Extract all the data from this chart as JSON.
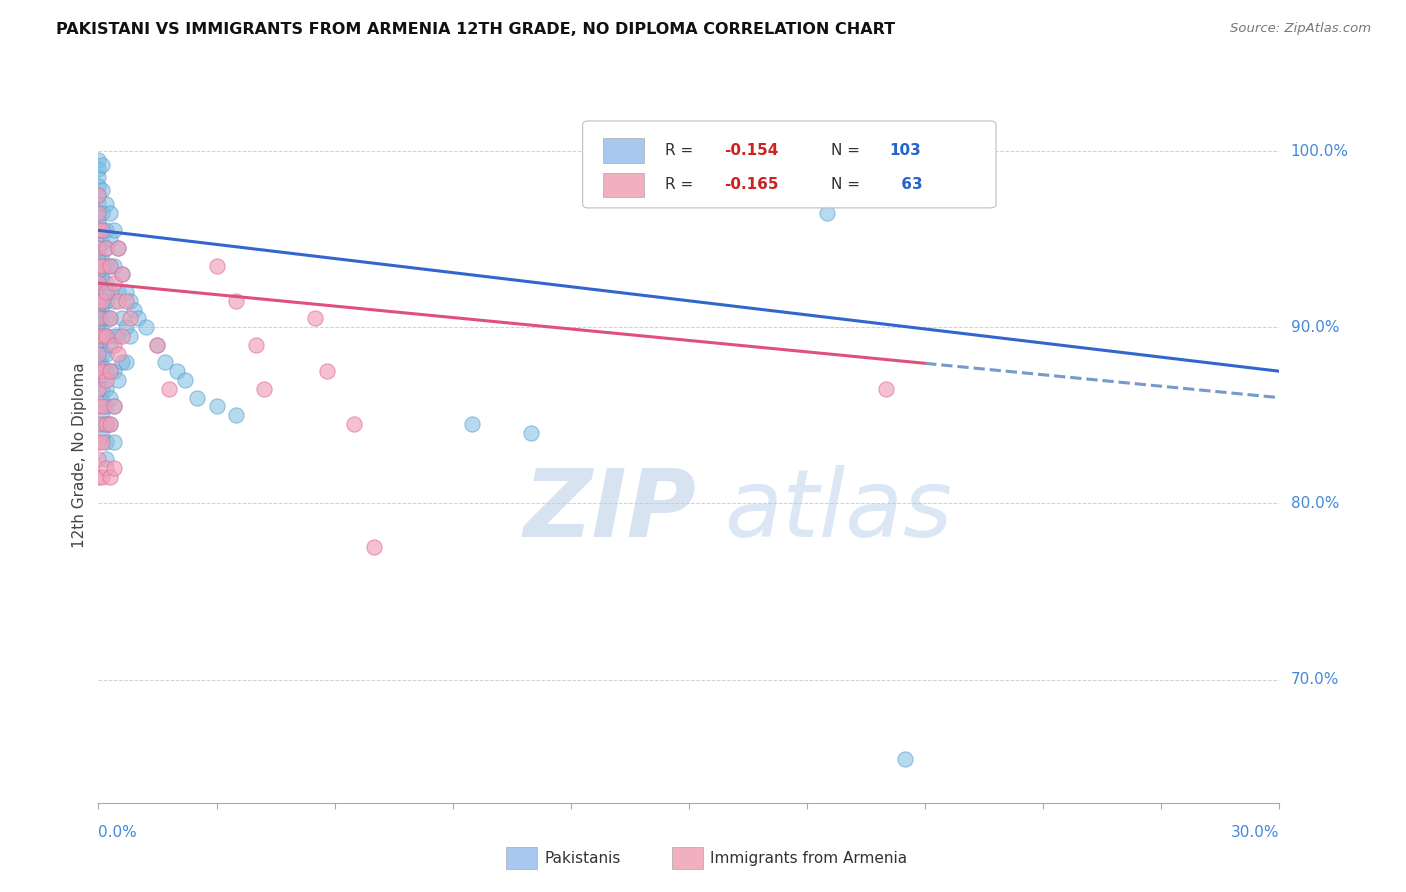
{
  "title": "PAKISTANI VS IMMIGRANTS FROM ARMENIA 12TH GRADE, NO DIPLOMA CORRELATION CHART",
  "source": "Source: ZipAtlas.com",
  "ylabel": "12th Grade, No Diploma",
  "watermark_zip": "ZIP",
  "watermark_atlas": "atlas",
  "xlim": [
    0.0,
    30.0
  ],
  "ylim": [
    63.0,
    102.5
  ],
  "pakistani_color": "#7bbde0",
  "pakistani_edge": "#5599cc",
  "armenia_color": "#f0a0b8",
  "armenia_edge": "#e070a0",
  "pakistani_line_color": "#3366cc",
  "armenia_line_color": "#e0507a",
  "dashed_line_color": "#7799cc",
  "legend_box_color": "#a8c8f0",
  "legend_box_color2": "#f0b0c0",
  "grid_color": "#cccccc",
  "background_color": "#ffffff",
  "pakistani_scatter": [
    [
      0.0,
      99.5
    ],
    [
      0.0,
      99.0
    ],
    [
      0.0,
      98.5
    ],
    [
      0.0,
      98.0
    ],
    [
      0.0,
      97.5
    ],
    [
      0.0,
      97.0
    ],
    [
      0.0,
      96.5
    ],
    [
      0.0,
      96.0
    ],
    [
      0.0,
      95.5
    ],
    [
      0.0,
      95.0
    ],
    [
      0.0,
      94.5
    ],
    [
      0.0,
      94.0
    ],
    [
      0.0,
      93.8
    ],
    [
      0.0,
      93.2
    ],
    [
      0.0,
      92.8
    ],
    [
      0.0,
      92.5
    ],
    [
      0.0,
      92.2
    ],
    [
      0.0,
      91.8
    ],
    [
      0.0,
      91.5
    ],
    [
      0.0,
      91.2
    ],
    [
      0.0,
      90.8
    ],
    [
      0.0,
      90.5
    ],
    [
      0.0,
      90.2
    ],
    [
      0.0,
      89.8
    ],
    [
      0.0,
      89.5
    ],
    [
      0.0,
      89.0
    ],
    [
      0.0,
      88.5
    ],
    [
      0.0,
      88.0
    ],
    [
      0.0,
      87.5
    ],
    [
      0.0,
      87.0
    ],
    [
      0.1,
      99.2
    ],
    [
      0.1,
      97.8
    ],
    [
      0.1,
      96.5
    ],
    [
      0.1,
      95.5
    ],
    [
      0.1,
      94.8
    ],
    [
      0.1,
      93.8
    ],
    [
      0.1,
      92.8
    ],
    [
      0.1,
      92.0
    ],
    [
      0.1,
      91.2
    ],
    [
      0.1,
      90.5
    ],
    [
      0.1,
      89.8
    ],
    [
      0.1,
      89.2
    ],
    [
      0.1,
      88.5
    ],
    [
      0.1,
      87.8
    ],
    [
      0.1,
      87.2
    ],
    [
      0.1,
      86.5
    ],
    [
      0.1,
      85.8
    ],
    [
      0.1,
      85.2
    ],
    [
      0.1,
      84.5
    ],
    [
      0.1,
      83.8
    ],
    [
      0.2,
      97.0
    ],
    [
      0.2,
      95.5
    ],
    [
      0.2,
      94.5
    ],
    [
      0.2,
      93.5
    ],
    [
      0.2,
      92.5
    ],
    [
      0.2,
      91.5
    ],
    [
      0.2,
      90.5
    ],
    [
      0.2,
      89.5
    ],
    [
      0.2,
      88.5
    ],
    [
      0.2,
      87.5
    ],
    [
      0.2,
      86.5
    ],
    [
      0.2,
      85.5
    ],
    [
      0.2,
      84.5
    ],
    [
      0.2,
      83.5
    ],
    [
      0.2,
      82.5
    ],
    [
      0.3,
      96.5
    ],
    [
      0.3,
      95.0
    ],
    [
      0.3,
      93.5
    ],
    [
      0.3,
      92.0
    ],
    [
      0.3,
      90.5
    ],
    [
      0.3,
      89.0
    ],
    [
      0.3,
      87.5
    ],
    [
      0.3,
      86.0
    ],
    [
      0.3,
      84.5
    ],
    [
      0.4,
      95.5
    ],
    [
      0.4,
      93.5
    ],
    [
      0.4,
      91.5
    ],
    [
      0.4,
      89.5
    ],
    [
      0.4,
      87.5
    ],
    [
      0.4,
      85.5
    ],
    [
      0.4,
      83.5
    ],
    [
      0.5,
      94.5
    ],
    [
      0.5,
      92.0
    ],
    [
      0.5,
      89.5
    ],
    [
      0.5,
      87.0
    ],
    [
      0.6,
      93.0
    ],
    [
      0.6,
      90.5
    ],
    [
      0.6,
      88.0
    ],
    [
      0.7,
      92.0
    ],
    [
      0.7,
      90.0
    ],
    [
      0.7,
      88.0
    ],
    [
      0.8,
      91.5
    ],
    [
      0.8,
      89.5
    ],
    [
      0.9,
      91.0
    ],
    [
      1.0,
      90.5
    ],
    [
      1.2,
      90.0
    ],
    [
      1.5,
      89.0
    ],
    [
      1.7,
      88.0
    ],
    [
      2.0,
      87.5
    ],
    [
      2.2,
      87.0
    ],
    [
      2.5,
      86.0
    ],
    [
      3.0,
      85.5
    ],
    [
      3.5,
      85.0
    ],
    [
      9.5,
      84.5
    ],
    [
      11.0,
      84.0
    ],
    [
      18.5,
      96.5
    ],
    [
      20.5,
      65.5
    ]
  ],
  "armenia_scatter": [
    [
      0.0,
      97.5
    ],
    [
      0.0,
      96.5
    ],
    [
      0.0,
      95.5
    ],
    [
      0.0,
      94.5
    ],
    [
      0.0,
      93.5
    ],
    [
      0.0,
      92.5
    ],
    [
      0.0,
      91.5
    ],
    [
      0.0,
      90.5
    ],
    [
      0.0,
      89.5
    ],
    [
      0.0,
      88.5
    ],
    [
      0.0,
      87.5
    ],
    [
      0.0,
      86.5
    ],
    [
      0.0,
      85.5
    ],
    [
      0.0,
      84.5
    ],
    [
      0.0,
      83.5
    ],
    [
      0.0,
      82.5
    ],
    [
      0.0,
      81.5
    ],
    [
      0.1,
      95.5
    ],
    [
      0.1,
      93.5
    ],
    [
      0.1,
      91.5
    ],
    [
      0.1,
      89.5
    ],
    [
      0.1,
      87.5
    ],
    [
      0.1,
      85.5
    ],
    [
      0.1,
      83.5
    ],
    [
      0.1,
      81.5
    ],
    [
      0.2,
      94.5
    ],
    [
      0.2,
      92.0
    ],
    [
      0.2,
      89.5
    ],
    [
      0.2,
      87.0
    ],
    [
      0.2,
      84.5
    ],
    [
      0.2,
      82.0
    ],
    [
      0.3,
      93.5
    ],
    [
      0.3,
      90.5
    ],
    [
      0.3,
      87.5
    ],
    [
      0.3,
      84.5
    ],
    [
      0.3,
      81.5
    ],
    [
      0.4,
      92.5
    ],
    [
      0.4,
      89.0
    ],
    [
      0.4,
      85.5
    ],
    [
      0.4,
      82.0
    ],
    [
      0.5,
      94.5
    ],
    [
      0.5,
      91.5
    ],
    [
      0.5,
      88.5
    ],
    [
      0.6,
      93.0
    ],
    [
      0.6,
      89.5
    ],
    [
      0.7,
      91.5
    ],
    [
      0.8,
      90.5
    ],
    [
      1.5,
      89.0
    ],
    [
      1.8,
      86.5
    ],
    [
      3.0,
      93.5
    ],
    [
      3.5,
      91.5
    ],
    [
      4.0,
      89.0
    ],
    [
      4.2,
      86.5
    ],
    [
      5.5,
      90.5
    ],
    [
      5.8,
      87.5
    ],
    [
      6.5,
      84.5
    ],
    [
      7.0,
      77.5
    ],
    [
      20.0,
      86.5
    ]
  ],
  "pak_line_x0": 0.0,
  "pak_line_y0": 95.5,
  "pak_line_x1": 30.0,
  "pak_line_y1": 87.5,
  "arm_line_x0": 0.0,
  "arm_line_y0": 92.5,
  "arm_line_x1": 30.0,
  "arm_line_y1": 86.0,
  "arm_solid_end": 21.0,
  "arm_dashed_start": 21.0
}
